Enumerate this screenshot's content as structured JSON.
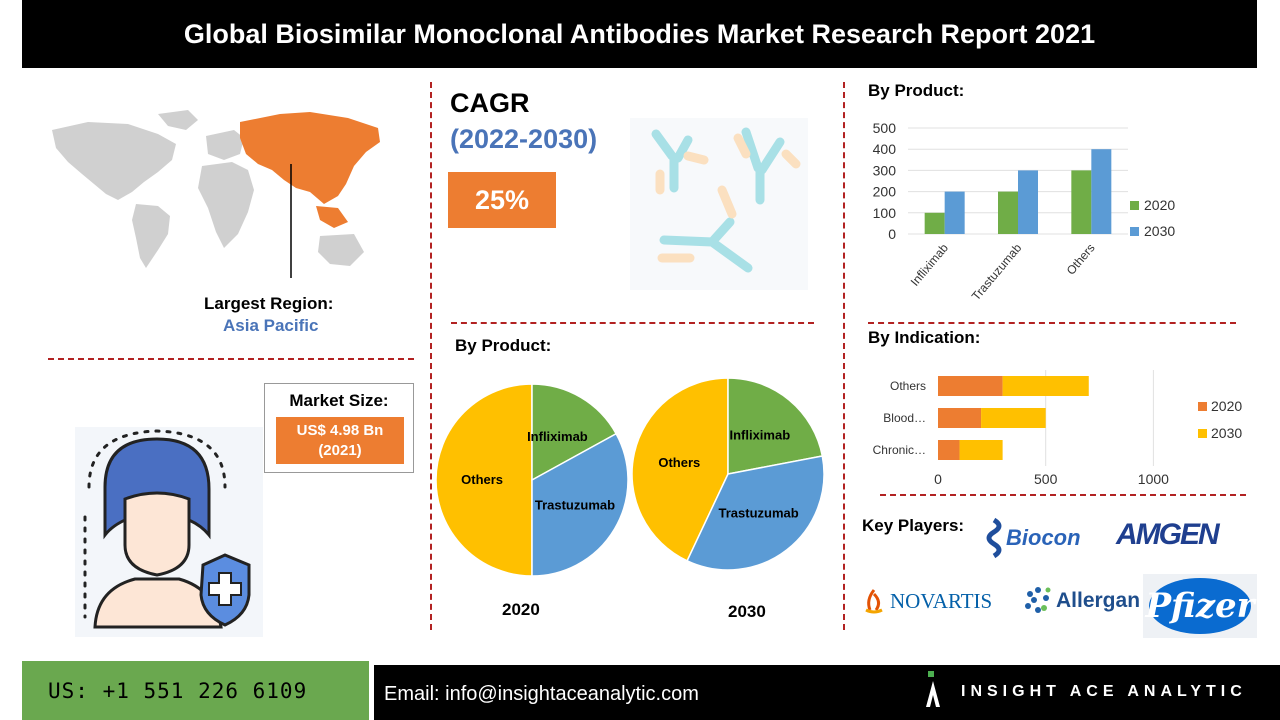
{
  "header": {
    "title": "Global Biosimilar Monoclonal Antibodies Market Research Report 2021"
  },
  "region": {
    "label": "Largest Region:",
    "value": "Asia Pacific"
  },
  "market_size": {
    "label": "Market Size:",
    "value_line1": "US$ 4.98 Bn",
    "value_line2": "(2021)"
  },
  "cagr": {
    "title": "CAGR",
    "period": "(2022-2030)",
    "value": "25%"
  },
  "by_product_pie": {
    "title": "By Product:",
    "year1": "2020",
    "year2": "2030"
  },
  "by_product_bar": {
    "title": "By Product:"
  },
  "by_indication": {
    "title": "By Indication:"
  },
  "key_players": {
    "title": "Key Players:",
    "logos": [
      "Biocon",
      "AMGEN",
      "NOVARTIS",
      "Allergan",
      "Pfizer"
    ]
  },
  "footer": {
    "phone": "US: +1 551 226 6109",
    "email": "Email: info@insightaceanalytic.com",
    "brand": "INSIGHT ACE ANALYTIC"
  },
  "colors": {
    "orange": "#ed7d31",
    "green": "#70ad47",
    "blue": "#5b9bd5",
    "yellow": "#ffc000",
    "accent_blue": "#4a74b8"
  },
  "chart_data": [
    {
      "type": "pie",
      "title": "2020",
      "slices": [
        {
          "label": "Others",
          "value": 50
        },
        {
          "label": "Infliximab",
          "value": 17
        },
        {
          "label": "Trastuzumab",
          "value": 33
        }
      ]
    },
    {
      "type": "pie",
      "title": "2030",
      "slices": [
        {
          "label": "Others",
          "value": 43
        },
        {
          "label": "Infliximab",
          "value": 22
        },
        {
          "label": "Trastuzumab",
          "value": 35
        }
      ]
    },
    {
      "type": "bar",
      "categories": [
        "Infliximab",
        "Trastuzumab",
        "Others"
      ],
      "series": [
        {
          "name": "2020",
          "values": [
            100,
            200,
            300
          ]
        },
        {
          "name": "2030",
          "values": [
            200,
            300,
            400
          ]
        }
      ],
      "ylim": [
        0,
        500
      ],
      "yticks": [
        "0",
        "100",
        "200",
        "300",
        "400",
        "500"
      ],
      "legend": "right"
    },
    {
      "type": "bar",
      "orientation": "horizontal-stacked",
      "categories": [
        "Others",
        "Blood…",
        "Chronic…"
      ],
      "series": [
        {
          "name": "2020",
          "values": [
            300,
            200,
            100
          ]
        },
        {
          "name": "2030",
          "values": [
            400,
            300,
            200
          ]
        }
      ],
      "xlim": [
        0,
        1300
      ],
      "xticks": [
        "0",
        "500",
        "1000"
      ],
      "legend": "right"
    }
  ]
}
